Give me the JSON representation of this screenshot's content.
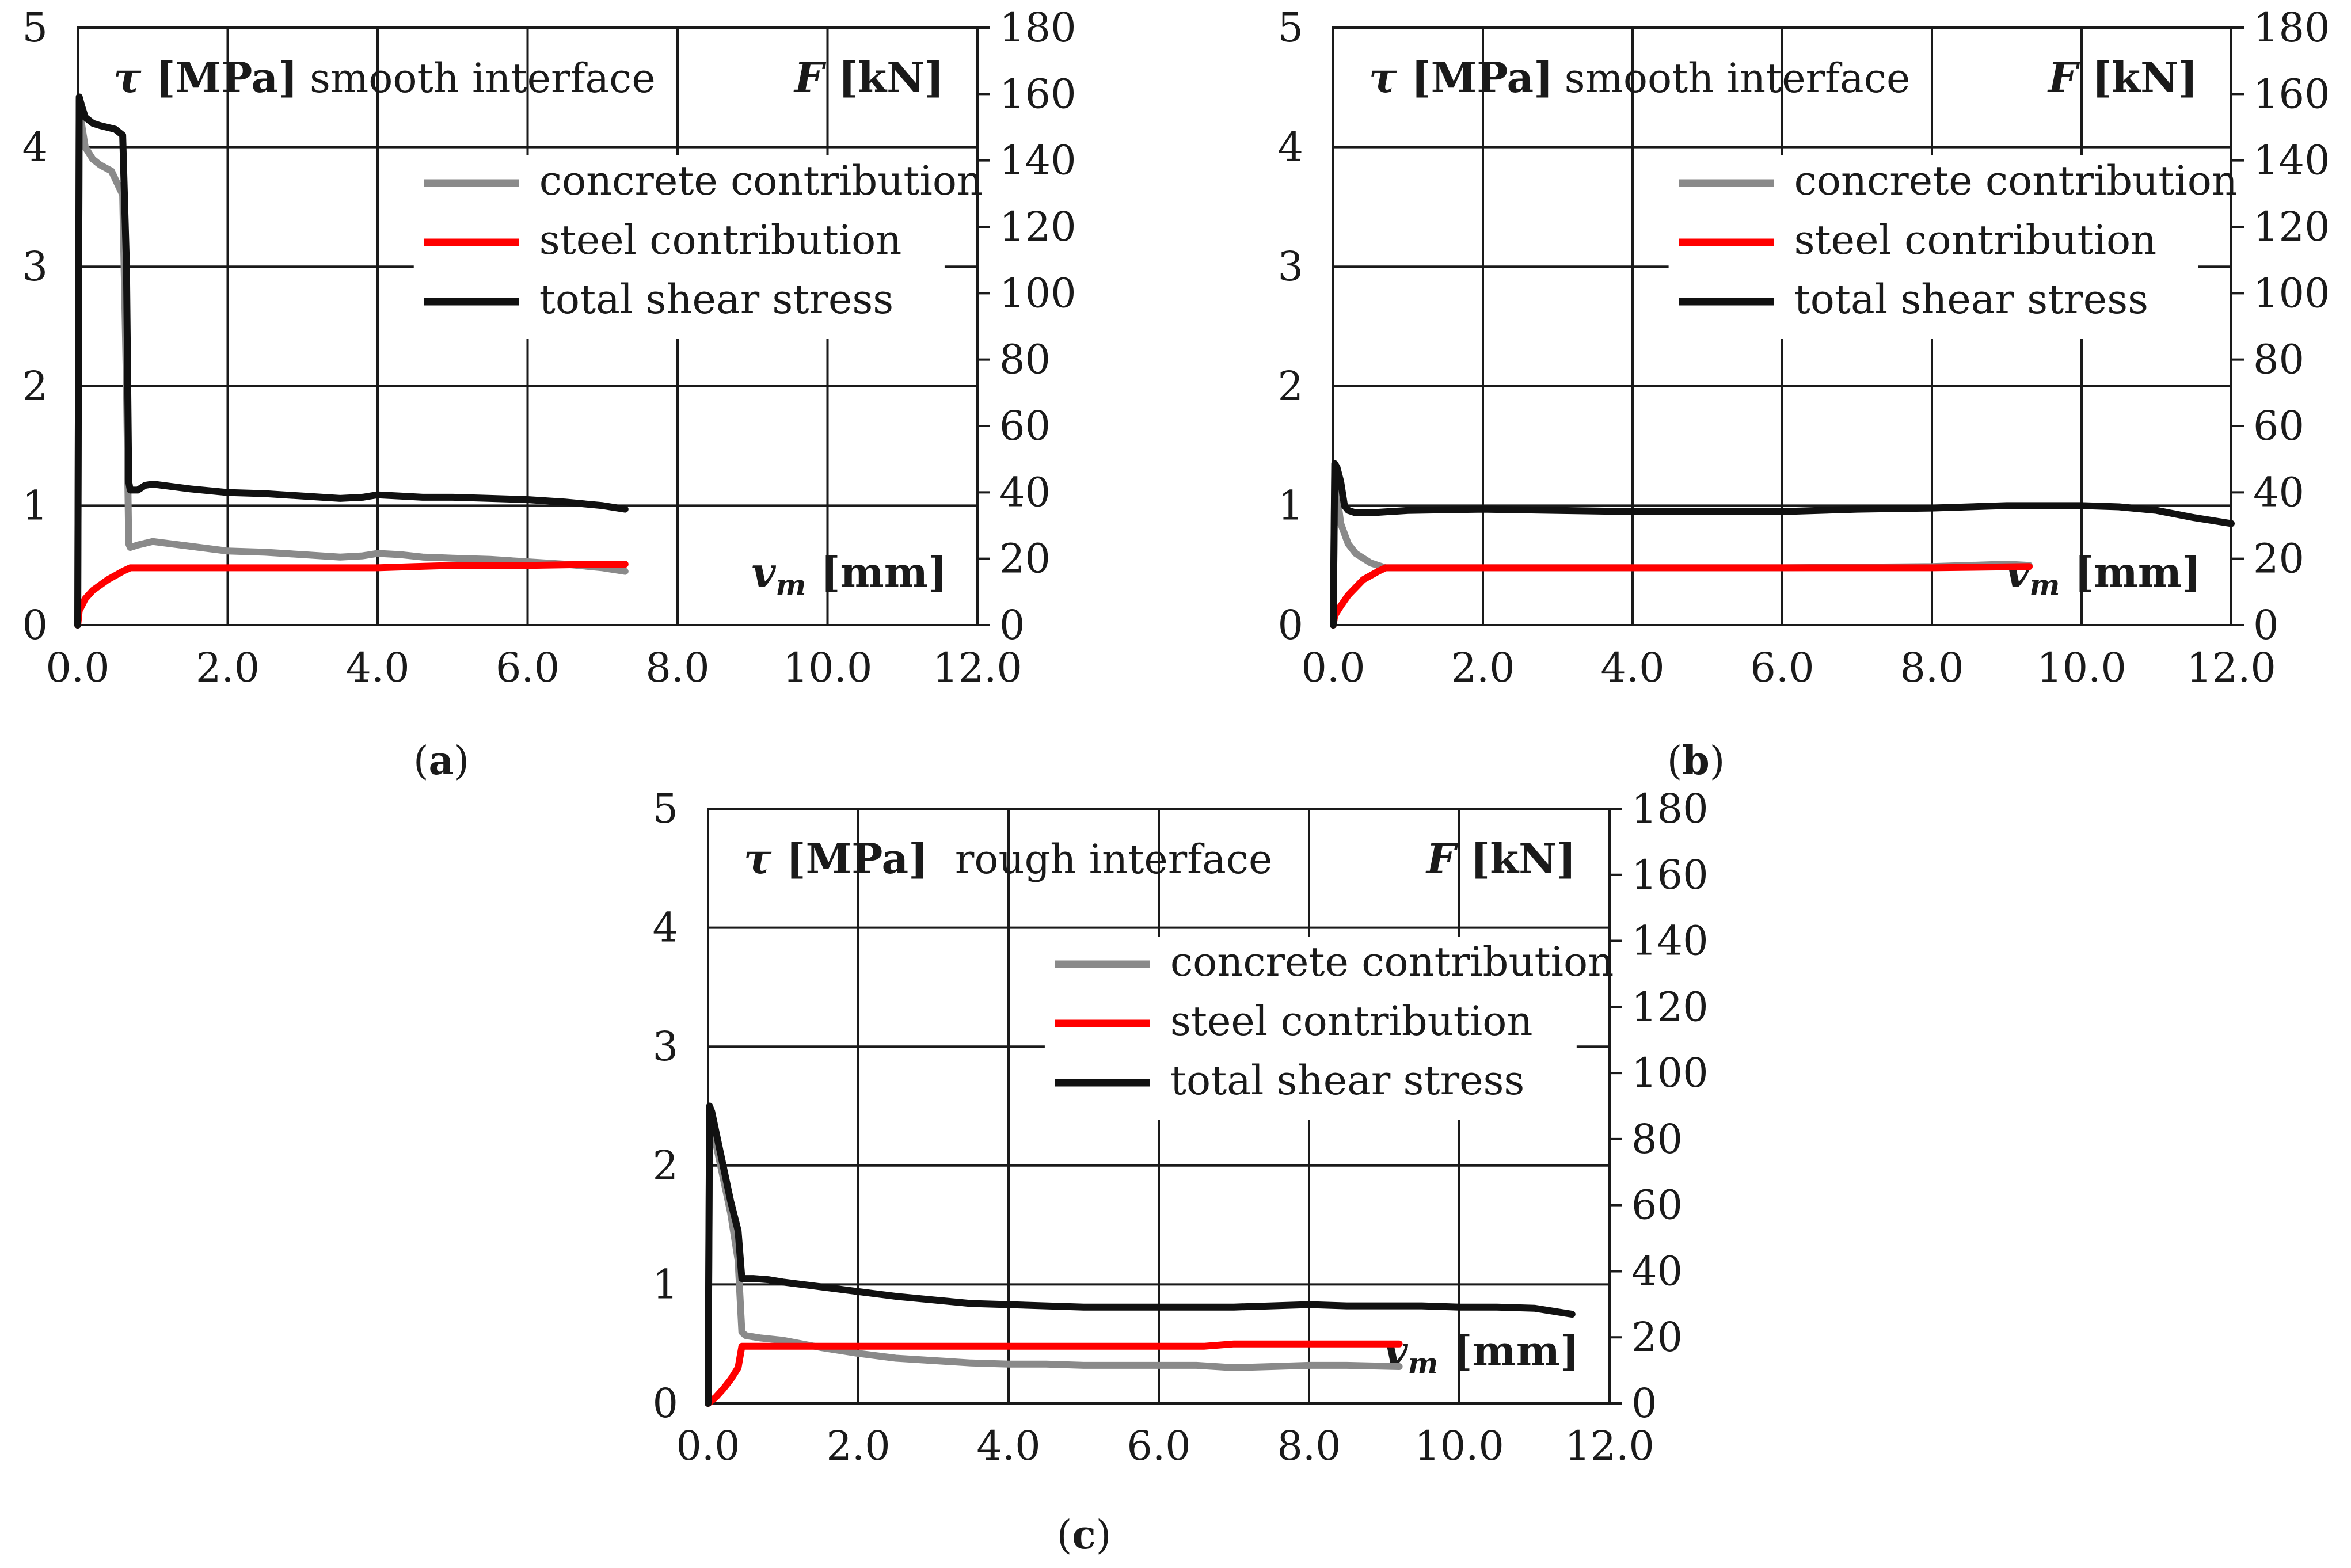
{
  "figure_label": "Shear stress vs. slip for three specimens",
  "colors": {
    "concrete": "#8a8a8a",
    "steel": "#ff0000",
    "total": "#111111",
    "axes": "#1a1a1a"
  },
  "legend": {
    "concrete": "concrete contribution",
    "steel": "steel contribution",
    "total": "total shear stress"
  },
  "chart_data": [
    {
      "id": "a",
      "type": "line",
      "caption": {
        "open": "(",
        "letter": "a",
        "close": ")"
      },
      "annotation": "smooth interface",
      "ylabel_left": {
        "symbol": "τ",
        "unit": "[MPa]"
      },
      "ylabel_right": {
        "symbol": "F",
        "unit": "[kN]"
      },
      "xlabel": {
        "symbol": "v",
        "sub": "m",
        "unit": "[mm]"
      },
      "xlim": [
        0,
        12
      ],
      "xticks": [
        "0.0",
        "2.0",
        "4.0",
        "6.0",
        "8.0",
        "10.0",
        "12.0"
      ],
      "ylim_left": [
        0,
        5
      ],
      "yticks_left": [
        "0",
        "1",
        "2",
        "3",
        "4",
        "5"
      ],
      "ylim_right": [
        0,
        180
      ],
      "yticks_right": [
        "0",
        "20",
        "40",
        "60",
        "80",
        "100",
        "120",
        "140",
        "160",
        "180"
      ],
      "grid": true,
      "legend_position": "upper-right",
      "series": [
        {
          "name": "concrete contribution",
          "key": "concrete",
          "x": [
            0,
            0.02,
            0.05,
            0.1,
            0.2,
            0.3,
            0.45,
            0.6,
            0.65,
            0.68,
            0.7,
            0.8,
            1.0,
            1.5,
            2.0,
            2.5,
            3.0,
            3.5,
            3.8,
            4.0,
            4.3,
            4.6,
            5.0,
            5.5,
            6.0,
            6.5,
            7.0,
            7.3
          ],
          "y": [
            0,
            4.4,
            4.2,
            4.0,
            3.9,
            3.85,
            3.8,
            3.6,
            2.0,
            0.68,
            0.65,
            0.67,
            0.7,
            0.66,
            0.62,
            0.61,
            0.59,
            0.57,
            0.58,
            0.6,
            0.59,
            0.57,
            0.56,
            0.55,
            0.53,
            0.51,
            0.48,
            0.45
          ]
        },
        {
          "name": "steel contribution",
          "key": "steel",
          "x": [
            0,
            0.02,
            0.1,
            0.2,
            0.4,
            0.6,
            0.7,
            1.0,
            2.0,
            3.0,
            4.0,
            4.5,
            5.0,
            6.0,
            7.0,
            7.3
          ],
          "y": [
            0,
            0.12,
            0.22,
            0.29,
            0.38,
            0.45,
            0.48,
            0.48,
            0.48,
            0.48,
            0.48,
            0.49,
            0.5,
            0.5,
            0.51,
            0.51
          ]
        },
        {
          "name": "total shear stress",
          "key": "total",
          "x": [
            0,
            0.02,
            0.05,
            0.1,
            0.2,
            0.3,
            0.5,
            0.6,
            0.65,
            0.68,
            0.7,
            0.8,
            0.9,
            1.0,
            1.5,
            2.0,
            2.5,
            3.0,
            3.5,
            3.8,
            4.0,
            4.3,
            4.6,
            5.0,
            5.5,
            6.0,
            6.5,
            7.0,
            7.3
          ],
          "y": [
            0,
            4.42,
            4.35,
            4.25,
            4.2,
            4.18,
            4.15,
            4.1,
            3.0,
            1.2,
            1.13,
            1.13,
            1.17,
            1.18,
            1.14,
            1.11,
            1.1,
            1.08,
            1.06,
            1.07,
            1.09,
            1.08,
            1.07,
            1.07,
            1.06,
            1.05,
            1.03,
            1.0,
            0.97
          ]
        }
      ]
    },
    {
      "id": "b",
      "type": "line",
      "caption": {
        "open": "(",
        "letter": "b",
        "close": ")"
      },
      "annotation": "smooth interface",
      "ylabel_left": {
        "symbol": "τ",
        "unit": "[MPa]"
      },
      "ylabel_right": {
        "symbol": "F",
        "unit": "[kN]"
      },
      "xlabel": {
        "symbol": "v",
        "sub": "m",
        "unit": "[mm]"
      },
      "xlim": [
        0,
        12
      ],
      "xticks": [
        "0.0",
        "2.0",
        "4.0",
        "6.0",
        "8.0",
        "10.0",
        "12.0"
      ],
      "ylim_left": [
        0,
        5
      ],
      "yticks_left": [
        "0",
        "1",
        "2",
        "3",
        "4",
        "5"
      ],
      "ylim_right": [
        0,
        180
      ],
      "yticks_right": [
        "0",
        "20",
        "40",
        "60",
        "80",
        "100",
        "120",
        "140",
        "160",
        "180"
      ],
      "grid": true,
      "legend_position": "upper-right",
      "series": [
        {
          "name": "concrete contribution",
          "key": "concrete",
          "x": [
            0,
            0.02,
            0.05,
            0.1,
            0.2,
            0.3,
            0.5,
            0.7,
            1.0,
            2.0,
            4.0,
            6.0,
            8.0,
            9.0,
            9.3
          ],
          "y": [
            0,
            1.3,
            1.1,
            0.85,
            0.68,
            0.6,
            0.52,
            0.48,
            0.48,
            0.48,
            0.48,
            0.48,
            0.49,
            0.51,
            0.5
          ]
        },
        {
          "name": "steel contribution",
          "key": "steel",
          "x": [
            0,
            0.02,
            0.1,
            0.2,
            0.4,
            0.6,
            0.7,
            1.0,
            2.0,
            4.0,
            6.0,
            8.0,
            9.3
          ],
          "y": [
            0,
            0.08,
            0.16,
            0.25,
            0.38,
            0.45,
            0.48,
            0.48,
            0.48,
            0.48,
            0.48,
            0.48,
            0.49
          ]
        },
        {
          "name": "total shear stress",
          "key": "total",
          "x": [
            0,
            0.02,
            0.05,
            0.1,
            0.15,
            0.2,
            0.3,
            0.5,
            1.0,
            2.0,
            3.0,
            4.0,
            5.0,
            6.0,
            7.0,
            8.0,
            9.0,
            10.0,
            10.5,
            11.0,
            11.5,
            12.0
          ],
          "y": [
            0,
            1.35,
            1.32,
            1.2,
            1.0,
            0.96,
            0.94,
            0.94,
            0.96,
            0.97,
            0.96,
            0.95,
            0.95,
            0.95,
            0.97,
            0.98,
            1.0,
            1.0,
            0.99,
            0.96,
            0.9,
            0.85
          ]
        }
      ]
    },
    {
      "id": "c",
      "type": "line",
      "caption": {
        "open": "(",
        "letter": "c",
        "close": ")"
      },
      "annotation": "rough interface",
      "ylabel_left": {
        "symbol": "τ",
        "unit": "[MPa]"
      },
      "ylabel_right": {
        "symbol": "F",
        "unit": "[kN]"
      },
      "xlabel": {
        "symbol": "v",
        "sub": "m",
        "unit": "[mm]"
      },
      "xlim": [
        0,
        12
      ],
      "xticks": [
        "0.0",
        "2.0",
        "4.0",
        "6.0",
        "8.0",
        "10.0",
        "12.0"
      ],
      "ylim_left": [
        0,
        5
      ],
      "yticks_left": [
        "0",
        "1",
        "2",
        "3",
        "4",
        "5"
      ],
      "ylim_right": [
        0,
        180
      ],
      "yticks_right": [
        "0",
        "20",
        "40",
        "60",
        "80",
        "100",
        "120",
        "140",
        "160",
        "180"
      ],
      "grid": true,
      "legend_position": "upper-right",
      "series": [
        {
          "name": "concrete contribution",
          "key": "concrete",
          "x": [
            0,
            0.02,
            0.05,
            0.1,
            0.2,
            0.3,
            0.4,
            0.45,
            0.5,
            0.7,
            1.0,
            1.5,
            2.0,
            2.5,
            3.0,
            3.5,
            4.0,
            4.5,
            5.0,
            5.5,
            6.0,
            6.5,
            7.0,
            7.5,
            8.0,
            8.5,
            9.2
          ],
          "y": [
            0,
            2.4,
            2.35,
            2.2,
            1.9,
            1.6,
            1.2,
            0.6,
            0.57,
            0.55,
            0.53,
            0.47,
            0.42,
            0.38,
            0.36,
            0.34,
            0.33,
            0.33,
            0.32,
            0.32,
            0.32,
            0.32,
            0.3,
            0.31,
            0.32,
            0.32,
            0.31
          ]
        },
        {
          "name": "steel contribution",
          "key": "steel",
          "x": [
            0,
            0.1,
            0.2,
            0.3,
            0.4,
            0.45,
            0.5,
            1.0,
            2.0,
            3.0,
            4.0,
            5.0,
            6.0,
            6.6,
            7.0,
            8.0,
            9.2
          ],
          "y": [
            0,
            0.05,
            0.12,
            0.2,
            0.3,
            0.48,
            0.48,
            0.48,
            0.48,
            0.48,
            0.48,
            0.48,
            0.48,
            0.48,
            0.5,
            0.5,
            0.5
          ]
        },
        {
          "name": "total shear stress",
          "key": "total",
          "x": [
            0,
            0.02,
            0.05,
            0.1,
            0.2,
            0.3,
            0.4,
            0.45,
            0.5,
            0.6,
            0.8,
            1.0,
            1.5,
            2.0,
            2.5,
            3.0,
            3.5,
            4.0,
            5.0,
            6.0,
            7.0,
            7.5,
            8.0,
            8.5,
            9.0,
            9.5,
            10.0,
            10.5,
            11.0,
            11.5
          ],
          "y": [
            0,
            2.5,
            2.45,
            2.3,
            2.0,
            1.7,
            1.45,
            1.05,
            1.05,
            1.05,
            1.04,
            1.02,
            0.98,
            0.94,
            0.9,
            0.87,
            0.84,
            0.83,
            0.81,
            0.81,
            0.81,
            0.82,
            0.83,
            0.82,
            0.82,
            0.82,
            0.81,
            0.81,
            0.8,
            0.75
          ]
        }
      ]
    }
  ]
}
